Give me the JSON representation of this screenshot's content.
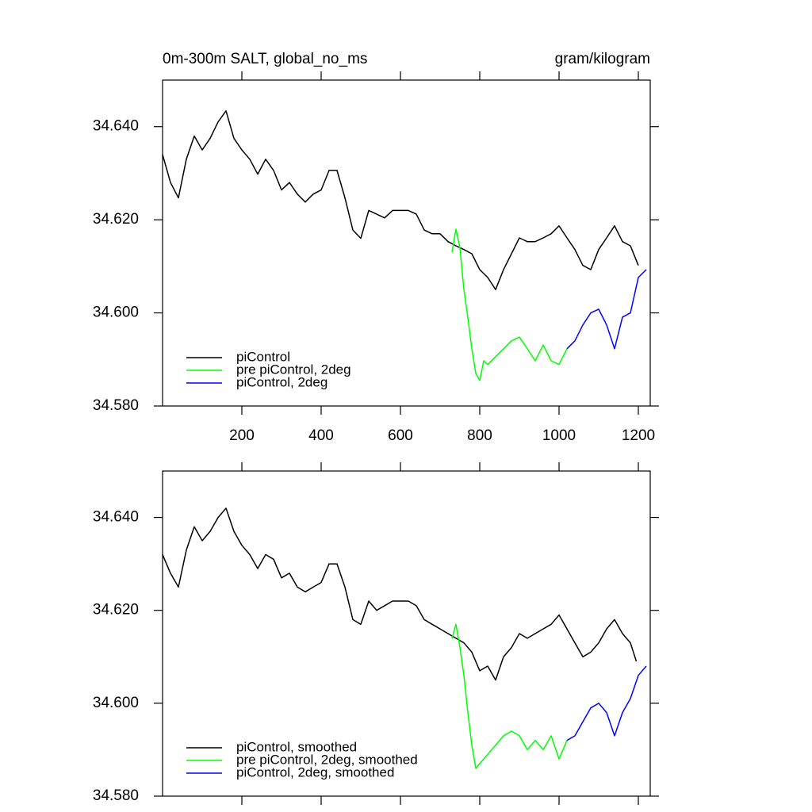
{
  "chart_data": [
    {
      "type": "line",
      "left_title": "0m-300m SALT, global_no_ms",
      "right_title": "gram/kilogram",
      "xlim": [
        0,
        1230
      ],
      "xticks": [
        200,
        400,
        600,
        800,
        1000,
        1200
      ],
      "ylim": [
        34.58,
        34.65
      ],
      "yticks": [
        {
          "value": 34.58,
          "label": "34.580"
        },
        {
          "value": 34.6,
          "label": "34.600"
        },
        {
          "value": 34.62,
          "label": "34.620"
        },
        {
          "value": 34.64,
          "label": "34.640"
        }
      ],
      "legend": "lower left",
      "series": [
        {
          "name": "piControl",
          "color": "#000000",
          "x": [
            0,
            20,
            40,
            60,
            80,
            100,
            120,
            140,
            160,
            180,
            200,
            220,
            240,
            260,
            280,
            300,
            320,
            340,
            360,
            380,
            400,
            420,
            440,
            460,
            480,
            500,
            520,
            540,
            560,
            580,
            600,
            620,
            640,
            660,
            680,
            700,
            720,
            740,
            760,
            780,
            800,
            820,
            840,
            860,
            880,
            900,
            920,
            940,
            960,
            980,
            1000,
            1020,
            1040,
            1060,
            1080,
            1100,
            1120,
            1140,
            1160,
            1180,
            1200
          ],
          "values": [
            34.634,
            34.628,
            34.6247,
            34.633,
            34.638,
            34.635,
            34.6375,
            34.641,
            34.6434,
            34.6375,
            34.635,
            34.633,
            34.6298,
            34.633,
            34.6306,
            34.6264,
            34.628,
            34.6255,
            34.6238,
            34.6255,
            34.6264,
            34.6306,
            34.6306,
            34.6247,
            34.6178,
            34.616,
            34.622,
            34.6212,
            34.6204,
            34.622,
            34.622,
            34.622,
            34.6212,
            34.6178,
            34.617,
            34.617,
            34.6153,
            34.6144,
            34.6136,
            34.6127,
            34.6093,
            34.6076,
            34.605,
            34.6093,
            34.6127,
            34.6161,
            34.6153,
            34.6153,
            34.6161,
            34.617,
            34.6187,
            34.6161,
            34.6136,
            34.6102,
            34.6093,
            34.6136,
            34.6161,
            34.6187,
            34.6153,
            34.6144,
            34.6102
          ]
        },
        {
          "name": "pre piControl, 2deg",
          "color": "#00ff00",
          "x": [
            730,
            740,
            750,
            760,
            770,
            780,
            790,
            800,
            810,
            820,
            840,
            860,
            880,
            900,
            920,
            940,
            960,
            980,
            1000,
            1020
          ],
          "values": [
            34.613,
            34.618,
            34.614,
            34.605,
            34.599,
            34.5923,
            34.587,
            34.5855,
            34.5897,
            34.5889,
            34.5906,
            34.5923,
            34.594,
            34.5948,
            34.5923,
            34.5897,
            34.5931,
            34.5897,
            34.5889,
            34.5923
          ]
        },
        {
          "name": "piControl, 2deg",
          "color": "#0000ff",
          "x": [
            1020,
            1040,
            1060,
            1080,
            1100,
            1120,
            1140,
            1160,
            1180,
            1200,
            1220
          ],
          "values": [
            34.5923,
            34.594,
            34.5974,
            34.6,
            34.6008,
            34.5974,
            34.5923,
            34.5991,
            34.6,
            34.6076,
            34.6093
          ]
        }
      ]
    },
    {
      "type": "line",
      "xlim": [
        0,
        1230
      ],
      "xticks": [
        200,
        400,
        600,
        800,
        1000,
        1200
      ],
      "ylim": [
        34.58,
        34.65
      ],
      "yticks": [
        {
          "value": 34.58,
          "label": "34.580"
        },
        {
          "value": 34.6,
          "label": "34.600"
        },
        {
          "value": 34.62,
          "label": "34.620"
        },
        {
          "value": 34.64,
          "label": "34.640"
        }
      ],
      "legend": "lower left",
      "series": [
        {
          "name": "piControl, smoothed",
          "color": "#000000",
          "x": [
            0,
            20,
            40,
            60,
            80,
            100,
            120,
            140,
            160,
            180,
            200,
            220,
            240,
            260,
            280,
            300,
            320,
            340,
            360,
            380,
            400,
            420,
            440,
            460,
            480,
            500,
            520,
            540,
            560,
            580,
            600,
            620,
            640,
            660,
            680,
            700,
            720,
            740,
            760,
            780,
            800,
            820,
            840,
            860,
            880,
            900,
            920,
            940,
            960,
            980,
            1000,
            1020,
            1040,
            1060,
            1080,
            1100,
            1120,
            1140,
            1160,
            1180,
            1195
          ],
          "values": [
            34.632,
            34.628,
            34.625,
            34.633,
            34.638,
            34.635,
            34.637,
            34.64,
            34.642,
            34.637,
            34.634,
            34.632,
            34.629,
            34.632,
            34.631,
            34.627,
            34.628,
            34.625,
            34.624,
            34.625,
            34.626,
            34.63,
            34.63,
            34.625,
            34.618,
            34.617,
            34.622,
            34.62,
            34.621,
            34.622,
            34.622,
            34.622,
            34.621,
            34.618,
            34.617,
            34.616,
            34.615,
            34.614,
            34.613,
            34.611,
            34.607,
            34.608,
            34.605,
            34.61,
            34.612,
            34.615,
            34.614,
            34.615,
            34.616,
            34.617,
            34.619,
            34.616,
            34.613,
            34.61,
            34.611,
            34.613,
            34.616,
            34.618,
            34.615,
            34.613,
            34.609
          ]
        },
        {
          "name": "pre piControl, 2deg, smoothed",
          "color": "#00ff00",
          "x": [
            730,
            740,
            750,
            760,
            770,
            780,
            790,
            800,
            820,
            840,
            860,
            880,
            900,
            920,
            940,
            960,
            980,
            1000,
            1020
          ],
          "values": [
            34.614,
            34.617,
            34.612,
            34.606,
            34.598,
            34.591,
            34.586,
            34.587,
            34.589,
            34.591,
            34.593,
            34.594,
            34.593,
            34.59,
            34.592,
            34.59,
            34.593,
            34.588,
            34.592
          ]
        },
        {
          "name": "piControl, 2deg, smoothed",
          "color": "#0000ff",
          "x": [
            1020,
            1040,
            1060,
            1080,
            1100,
            1120,
            1140,
            1160,
            1180,
            1200,
            1220
          ],
          "values": [
            34.592,
            34.593,
            34.596,
            34.599,
            34.6,
            34.598,
            34.593,
            34.598,
            34.601,
            34.606,
            34.608
          ]
        }
      ]
    }
  ]
}
